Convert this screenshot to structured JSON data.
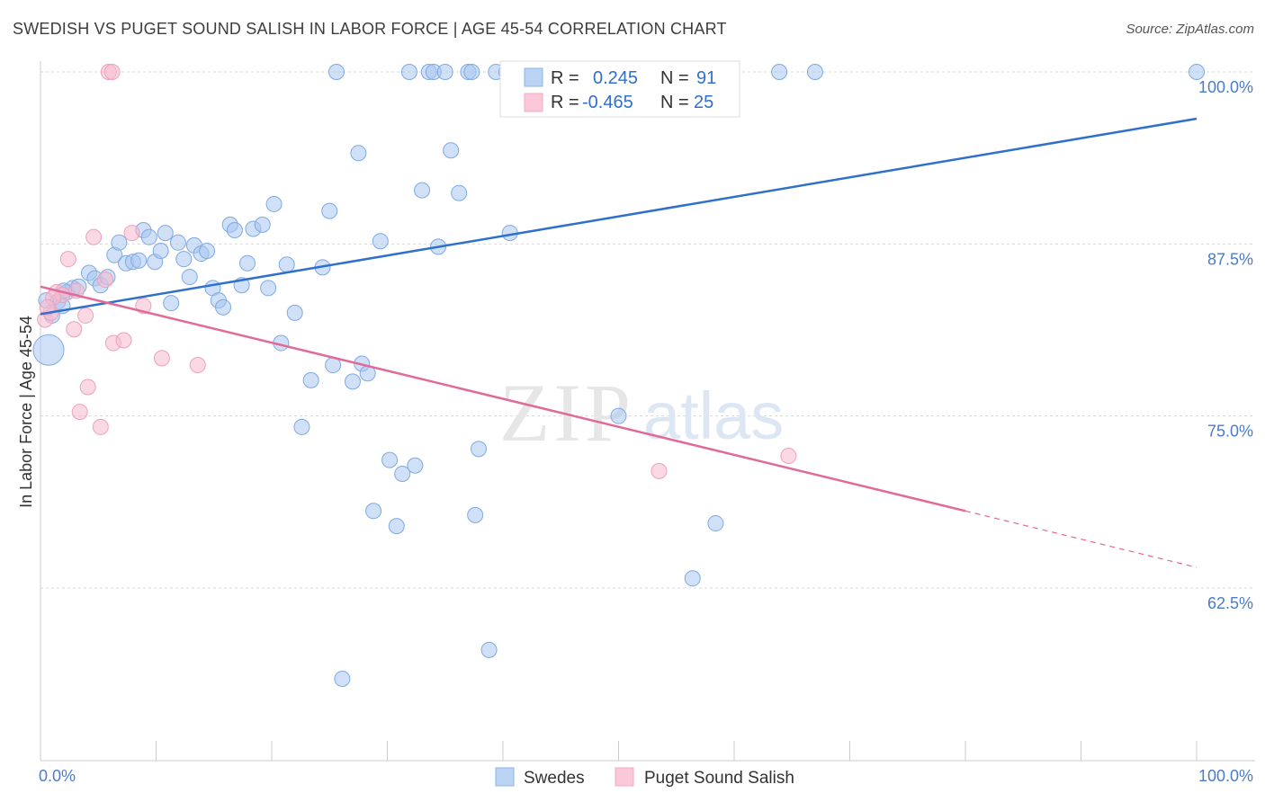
{
  "title": "SWEDISH VS PUGET SOUND SALISH IN LABOR FORCE | AGE 45-54 CORRELATION CHART",
  "source": "Source: ZipAtlas.com",
  "watermark": {
    "zip": "ZIP",
    "atlas": "atlas"
  },
  "legend_box": {
    "rows": [
      {
        "r_label": "R =",
        "r_value": "0.245",
        "n_label": "N =",
        "n_value": "91"
      },
      {
        "r_label": "R =",
        "r_value": "-0.465",
        "n_label": "N =",
        "n_value": "25"
      }
    ]
  },
  "chart_data": {
    "type": "scatter",
    "title": "SWEDISH VS PUGET SOUND SALISH IN LABOR FORCE | AGE 45-54 CORRELATION CHART",
    "xlabel": "",
    "ylabel": "In Labor Force | Age 45-54",
    "xlim": [
      0,
      100
    ],
    "ylim": [
      51.5,
      101.5
    ],
    "x_tick_labels": [
      "0.0%",
      "100.0%"
    ],
    "y_ticks": [
      62.5,
      75.0,
      87.5,
      100.0
    ],
    "y_tick_labels": [
      "62.5%",
      "75.0%",
      "87.5%",
      "100.0%"
    ],
    "grid": "horizontal dashed",
    "legend_placement": "bottom-center",
    "colors": {
      "Swedes": "#8ab4ea",
      "Puget Sound Salish": "#f4a8c0",
      "Swedes_line": "#2e70cc",
      "Puget_line": "#e06a98"
    },
    "series": [
      {
        "name": "Swedes",
        "trend": {
          "x": [
            0,
            100
          ],
          "y": [
            82.4,
            96.6
          ]
        },
        "points": [
          [
            0.7,
            79.8
          ],
          [
            1.0,
            82.3
          ],
          [
            1.5,
            83.3
          ],
          [
            1.9,
            83.0
          ],
          [
            2.3,
            84.0
          ],
          [
            2.8,
            84.3
          ],
          [
            3.3,
            84.4
          ],
          [
            4.2,
            85.4
          ],
          [
            4.7,
            85.0
          ],
          [
            5.2,
            84.5
          ],
          [
            5.8,
            85.1
          ],
          [
            6.4,
            86.7
          ],
          [
            6.8,
            87.6
          ],
          [
            7.4,
            86.1
          ],
          [
            8.0,
            86.2
          ],
          [
            8.5,
            86.3
          ],
          [
            8.9,
            88.5
          ],
          [
            9.4,
            88.0
          ],
          [
            9.9,
            86.2
          ],
          [
            10.4,
            87.0
          ],
          [
            10.8,
            88.3
          ],
          [
            11.3,
            83.2
          ],
          [
            11.9,
            87.6
          ],
          [
            12.4,
            86.4
          ],
          [
            12.9,
            85.1
          ],
          [
            13.3,
            87.4
          ],
          [
            13.9,
            86.8
          ],
          [
            14.4,
            87.0
          ],
          [
            14.9,
            84.3
          ],
          [
            15.4,
            83.4
          ],
          [
            15.8,
            82.9
          ],
          [
            16.4,
            88.9
          ],
          [
            16.8,
            88.5
          ],
          [
            17.4,
            84.5
          ],
          [
            17.9,
            86.1
          ],
          [
            18.4,
            88.6
          ],
          [
            19.2,
            88.9
          ],
          [
            19.7,
            84.3
          ],
          [
            20.2,
            90.4
          ],
          [
            20.8,
            80.3
          ],
          [
            21.3,
            86.0
          ],
          [
            22.0,
            82.5
          ],
          [
            22.6,
            74.2
          ],
          [
            23.4,
            77.6
          ],
          [
            24.4,
            85.8
          ],
          [
            25.0,
            89.9
          ],
          [
            25.3,
            78.7
          ],
          [
            25.6,
            100.0
          ],
          [
            26.1,
            55.9
          ],
          [
            27.0,
            77.5
          ],
          [
            27.5,
            94.1
          ],
          [
            27.8,
            78.8
          ],
          [
            28.3,
            78.1
          ],
          [
            28.8,
            68.1
          ],
          [
            29.4,
            87.7
          ],
          [
            30.2,
            71.8
          ],
          [
            30.8,
            67.0
          ],
          [
            31.3,
            70.8
          ],
          [
            31.9,
            100.0
          ],
          [
            32.4,
            71.4
          ],
          [
            33.0,
            91.4
          ],
          [
            33.6,
            100.0
          ],
          [
            34.0,
            100.0
          ],
          [
            34.4,
            87.3
          ],
          [
            35.0,
            100.0
          ],
          [
            35.5,
            94.3
          ],
          [
            36.2,
            91.2
          ],
          [
            37.0,
            100.0
          ],
          [
            37.3,
            100.0
          ],
          [
            37.6,
            67.8
          ],
          [
            37.9,
            72.6
          ],
          [
            38.8,
            58.0
          ],
          [
            39.4,
            100.0
          ],
          [
            40.3,
            100.0
          ],
          [
            40.6,
            88.3
          ],
          [
            41.2,
            100.0
          ],
          [
            41.9,
            100.0
          ],
          [
            43.2,
            100.0
          ],
          [
            45.9,
            100.0
          ],
          [
            47.4,
            100.0
          ],
          [
            50.0,
            75.0
          ],
          [
            53.1,
            100.0
          ],
          [
            56.0,
            100.0
          ],
          [
            56.4,
            63.2
          ],
          [
            57.6,
            100.0
          ],
          [
            58.4,
            67.2
          ],
          [
            63.9,
            100.0
          ],
          [
            67.0,
            100.0
          ],
          [
            100.0,
            100.0
          ],
          [
            0.5,
            83.4
          ],
          [
            2.0,
            84.1
          ]
        ]
      },
      {
        "name": "Puget Sound Salish",
        "trend": {
          "x": [
            0,
            80
          ],
          "y": [
            84.4,
            68.1
          ]
        },
        "trend_dashed": {
          "x": [
            80,
            100
          ],
          "y": [
            68.1,
            64.0
          ]
        },
        "points": [
          [
            0.4,
            82.0
          ],
          [
            0.9,
            82.5
          ],
          [
            1.4,
            84.0
          ],
          [
            1.9,
            83.8
          ],
          [
            2.4,
            86.4
          ],
          [
            2.9,
            81.3
          ],
          [
            3.4,
            75.3
          ],
          [
            3.9,
            82.3
          ],
          [
            4.1,
            77.1
          ],
          [
            4.6,
            88.0
          ],
          [
            5.2,
            74.2
          ],
          [
            5.6,
            84.9
          ],
          [
            5.9,
            100.0
          ],
          [
            6.2,
            100.0
          ],
          [
            6.3,
            80.3
          ],
          [
            7.2,
            80.5
          ],
          [
            7.9,
            88.3
          ],
          [
            8.9,
            83.0
          ],
          [
            10.5,
            79.2
          ],
          [
            13.6,
            78.7
          ],
          [
            53.5,
            71.0
          ],
          [
            64.7,
            72.1
          ],
          [
            1.1,
            83.6
          ],
          [
            3.1,
            84.1
          ],
          [
            0.6,
            82.9
          ]
        ]
      }
    ]
  },
  "bottom_legend": {
    "items": [
      {
        "label": "Swedes"
      },
      {
        "label": "Puget Sound Salish"
      }
    ]
  }
}
